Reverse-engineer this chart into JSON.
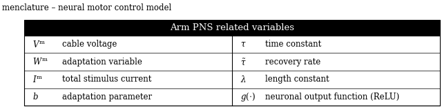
{
  "title": "menclature – neural motor control model",
  "table_header": "Arm PNS related variables",
  "header_bg": "#000000",
  "header_fg": "#ffffff",
  "row_bg": "#ffffff",
  "border_color": "#000000",
  "left_rows": [
    [
      "$V^\\mathrm{m}$",
      "cable voltage"
    ],
    [
      "$W^\\mathrm{m}$",
      "adaptation variable"
    ],
    [
      "$I^\\mathrm{m}$",
      "total stimulus current"
    ],
    [
      "$b$",
      "adaptation parameter"
    ]
  ],
  "right_rows": [
    [
      "$\\tau$",
      "time constant"
    ],
    [
      "$\\tilde{\\tau}$",
      "recovery rate"
    ],
    [
      "$\\lambda$",
      "length constant"
    ],
    [
      "$g(\\cdot)$",
      "neuronal output function (ReLU)"
    ]
  ],
  "title_fontsize": 8.5,
  "header_fontsize": 9.5,
  "cell_fontsize": 8.5
}
